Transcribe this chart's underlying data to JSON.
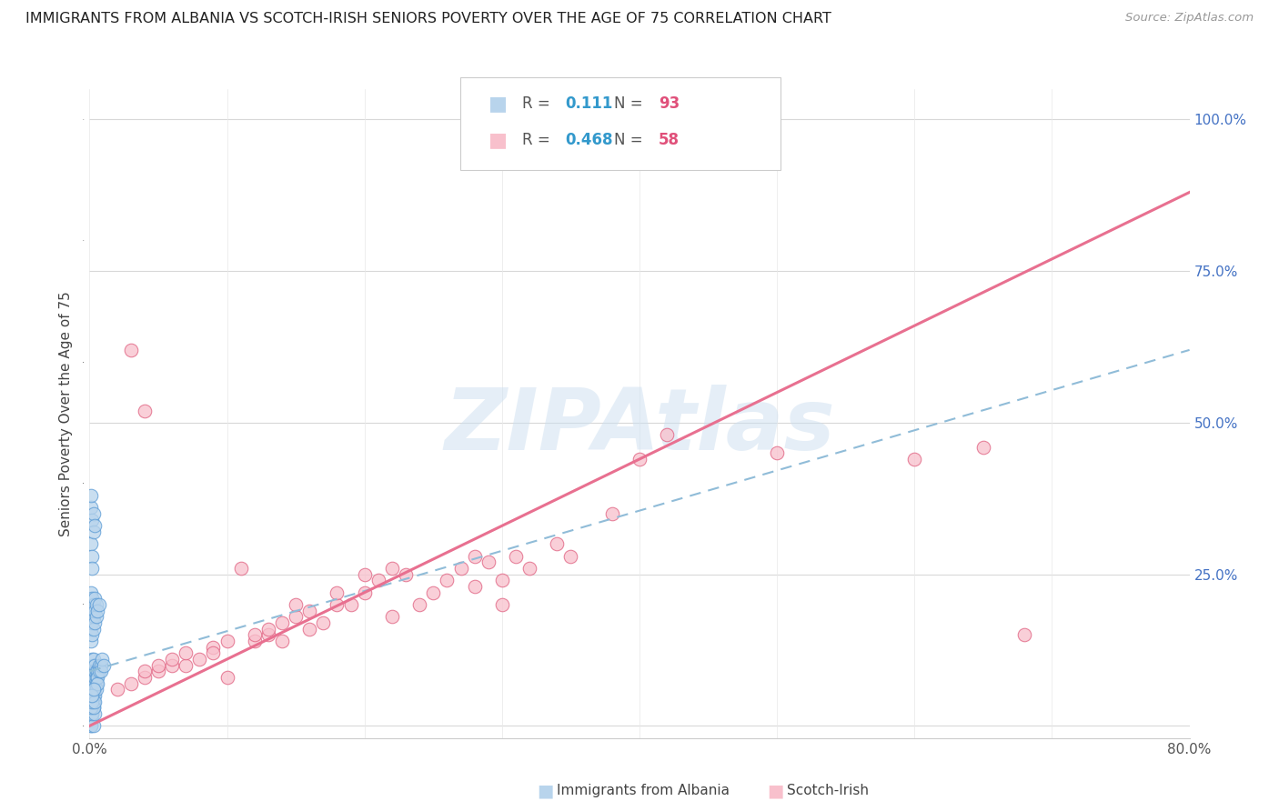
{
  "title": "IMMIGRANTS FROM ALBANIA VS SCOTCH-IRISH SENIORS POVERTY OVER THE AGE OF 75 CORRELATION CHART",
  "source": "Source: ZipAtlas.com",
  "ylabel": "Seniors Poverty Over the Age of 75",
  "legend_label1": "Immigrants from Albania",
  "legend_label2": "Scotch-Irish",
  "R1": "0.111",
  "N1": "93",
  "R2": "0.468",
  "N2": "58",
  "xlim": [
    0.0,
    0.8
  ],
  "ylim": [
    -0.02,
    1.05
  ],
  "xticks": [
    0.0,
    0.1,
    0.2,
    0.3,
    0.4,
    0.5,
    0.6,
    0.7,
    0.8
  ],
  "xticklabels": [
    "0.0%",
    "",
    "",
    "",
    "",
    "",
    "",
    "",
    "80.0%"
  ],
  "yticks_right": [
    0.0,
    0.25,
    0.5,
    0.75,
    1.0
  ],
  "yticklabels_right": [
    "",
    "25.0%",
    "50.0%",
    "75.0%",
    "100.0%"
  ],
  "color_albania_fill": "#b8d4ec",
  "color_albania_edge": "#5b9bd5",
  "color_scotch_fill": "#f8c0cc",
  "color_scotch_edge": "#e06080",
  "color_albania_line": "#90bcd8",
  "color_scotch_line": "#e87090",
  "color_R": "#3399cc",
  "color_N": "#e0507a",
  "watermark": "ZIPAtlas",
  "background_color": "#ffffff",
  "albania_x": [
    0.001,
    0.001,
    0.001,
    0.001,
    0.001,
    0.001,
    0.001,
    0.001,
    0.001,
    0.001,
    0.002,
    0.002,
    0.002,
    0.002,
    0.002,
    0.002,
    0.002,
    0.002,
    0.002,
    0.002,
    0.003,
    0.003,
    0.003,
    0.003,
    0.003,
    0.003,
    0.003,
    0.003,
    0.003,
    0.004,
    0.004,
    0.004,
    0.004,
    0.004,
    0.004,
    0.005,
    0.005,
    0.005,
    0.005,
    0.006,
    0.006,
    0.006,
    0.007,
    0.007,
    0.008,
    0.008,
    0.009,
    0.01,
    0.001,
    0.001,
    0.001,
    0.001,
    0.001,
    0.002,
    0.002,
    0.002,
    0.002,
    0.003,
    0.003,
    0.003,
    0.004,
    0.004,
    0.004,
    0.005,
    0.005,
    0.006,
    0.007,
    0.001,
    0.002,
    0.001,
    0.001,
    0.002,
    0.003,
    0.003,
    0.004,
    0.002,
    0.001,
    0.002,
    0.001,
    0.003,
    0.002,
    0.004,
    0.001,
    0.003,
    0.002,
    0.001,
    0.004,
    0.002,
    0.003
  ],
  "albania_y": [
    0.04,
    0.05,
    0.06,
    0.07,
    0.08,
    0.09,
    0.1,
    0.03,
    0.02,
    0.01,
    0.05,
    0.06,
    0.07,
    0.08,
    0.09,
    0.1,
    0.11,
    0.04,
    0.03,
    0.02,
    0.06,
    0.07,
    0.08,
    0.09,
    0.1,
    0.11,
    0.05,
    0.04,
    0.03,
    0.07,
    0.08,
    0.09,
    0.1,
    0.06,
    0.05,
    0.08,
    0.09,
    0.07,
    0.06,
    0.09,
    0.08,
    0.07,
    0.1,
    0.09,
    0.1,
    0.09,
    0.11,
    0.1,
    0.14,
    0.16,
    0.18,
    0.2,
    0.22,
    0.15,
    0.17,
    0.19,
    0.21,
    0.16,
    0.18,
    0.2,
    0.17,
    0.19,
    0.21,
    0.18,
    0.2,
    0.19,
    0.2,
    0.3,
    0.28,
    0.36,
    0.38,
    0.34,
    0.32,
    0.35,
    0.33,
    0.26,
    0.0,
    0.01,
    0.0,
    0.0,
    0.02,
    0.02,
    0.03,
    0.03,
    0.04,
    0.05,
    0.04,
    0.05,
    0.06
  ],
  "scotch_x": [
    0.02,
    0.03,
    0.04,
    0.04,
    0.05,
    0.05,
    0.06,
    0.06,
    0.07,
    0.07,
    0.08,
    0.09,
    0.09,
    0.1,
    0.1,
    0.11,
    0.12,
    0.12,
    0.13,
    0.13,
    0.14,
    0.14,
    0.15,
    0.15,
    0.16,
    0.16,
    0.17,
    0.18,
    0.18,
    0.19,
    0.2,
    0.2,
    0.21,
    0.22,
    0.22,
    0.23,
    0.24,
    0.25,
    0.26,
    0.27,
    0.28,
    0.28,
    0.29,
    0.3,
    0.3,
    0.31,
    0.32,
    0.34,
    0.35,
    0.38,
    0.4,
    0.42,
    0.5,
    0.6,
    0.65,
    0.68,
    0.03,
    0.04
  ],
  "scotch_y": [
    0.06,
    0.07,
    0.08,
    0.09,
    0.09,
    0.1,
    0.1,
    0.11,
    0.1,
    0.12,
    0.11,
    0.13,
    0.12,
    0.08,
    0.14,
    0.26,
    0.14,
    0.15,
    0.15,
    0.16,
    0.14,
    0.17,
    0.18,
    0.2,
    0.19,
    0.16,
    0.17,
    0.2,
    0.22,
    0.2,
    0.22,
    0.25,
    0.24,
    0.18,
    0.26,
    0.25,
    0.2,
    0.22,
    0.24,
    0.26,
    0.23,
    0.28,
    0.27,
    0.2,
    0.24,
    0.28,
    0.26,
    0.3,
    0.28,
    0.35,
    0.44,
    0.48,
    0.45,
    0.44,
    0.46,
    0.15,
    0.62,
    0.52
  ],
  "albania_line_x": [
    0.0,
    0.8
  ],
  "albania_line_y": [
    0.09,
    0.62
  ],
  "scotch_line_x": [
    0.0,
    0.8
  ],
  "scotch_line_y": [
    0.0,
    0.88
  ]
}
